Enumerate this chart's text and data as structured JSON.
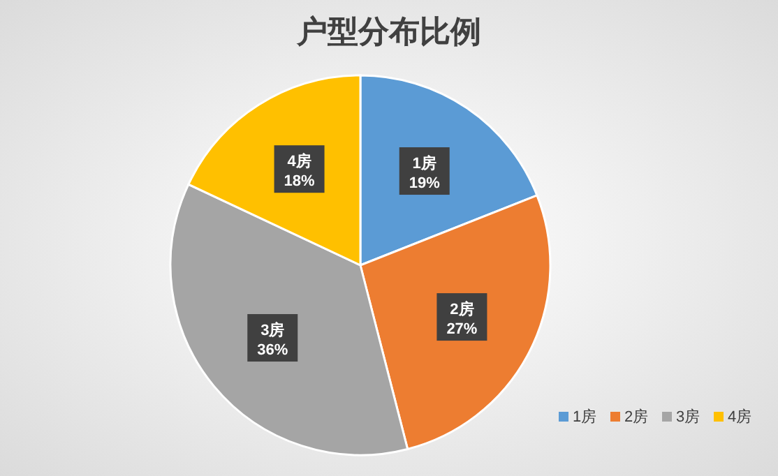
{
  "chart_data": {
    "type": "pie",
    "title": "户型分布比例",
    "categories": [
      "1房",
      "2房",
      "3房",
      "4房"
    ],
    "values": [
      19,
      27,
      36,
      18
    ],
    "value_labels": [
      "19%",
      "27%",
      "36%",
      "18%"
    ],
    "colors": [
      "#5b9bd5",
      "#ed7d31",
      "#a5a5a5",
      "#ffc000"
    ],
    "legend": "bottom right"
  }
}
